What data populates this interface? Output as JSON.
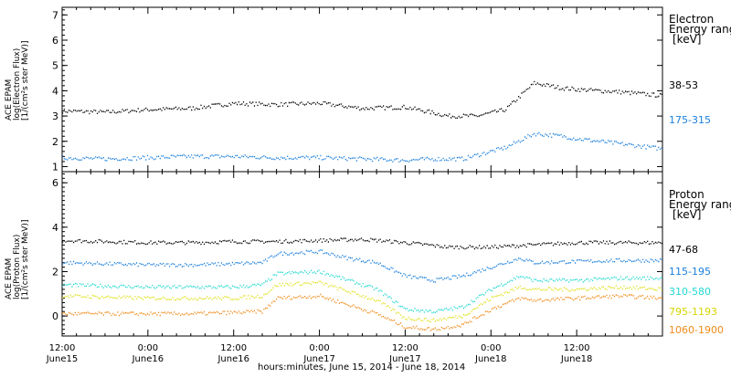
{
  "colors": {
    "black": "#000000",
    "blue": "#1a7fdc",
    "cyan": "#22d8d0",
    "yellow": "#e0e020",
    "orange": "#f08a18",
    "axis": "#000000"
  },
  "chart_data": [
    {
      "type": "scatter",
      "panel": "electron",
      "ylabel_lines": [
        "ACE EPAM",
        "log(Electron Flux)",
        "[1/(cm²s ster MeV)]"
      ],
      "legend_title_lines": [
        "Electron",
        "Energy range",
        "[keV]"
      ],
      "ylim": [
        0.8,
        7.3
      ],
      "yticks": [
        1,
        2,
        3,
        4,
        5,
        6,
        7
      ],
      "series": [
        {
          "name": "38-53",
          "color": "#000000",
          "x": [
            0,
            6,
            12,
            18,
            24,
            30,
            36,
            42,
            48,
            54,
            58,
            62,
            66,
            70,
            72,
            78,
            84
          ],
          "y": [
            3.2,
            3.15,
            3.25,
            3.3,
            3.5,
            3.45,
            3.5,
            3.3,
            3.35,
            3.0,
            3.0,
            3.25,
            4.3,
            4.1,
            4.05,
            3.95,
            3.8
          ]
        },
        {
          "name": "175-315",
          "color": "#1a7fdc",
          "x": [
            0,
            6,
            12,
            18,
            24,
            30,
            36,
            42,
            48,
            52,
            56,
            60,
            62,
            66,
            70,
            72,
            78,
            84
          ],
          "y": [
            1.35,
            1.3,
            1.35,
            1.4,
            1.4,
            1.35,
            1.35,
            1.3,
            1.25,
            1.3,
            1.3,
            1.6,
            1.75,
            2.3,
            2.2,
            2.1,
            1.9,
            1.7
          ]
        }
      ]
    },
    {
      "type": "scatter",
      "panel": "proton",
      "ylabel_lines": [
        "ACE EPAM",
        "log(Proton Flux)",
        "[1/(cm²s ster MeV)]"
      ],
      "legend_title_lines": [
        "Proton",
        "Energy range",
        "[keV]"
      ],
      "ylim": [
        -0.9,
        6.5
      ],
      "yticks": [
        0,
        2,
        4,
        6
      ],
      "series": [
        {
          "name": "47-68",
          "color": "#000000",
          "x": [
            0,
            6,
            12,
            18,
            24,
            30,
            36,
            42,
            48,
            54,
            60,
            66,
            72,
            78,
            84
          ],
          "y": [
            3.4,
            3.35,
            3.3,
            3.3,
            3.35,
            3.35,
            3.4,
            3.45,
            3.3,
            3.1,
            3.1,
            3.2,
            3.3,
            3.3,
            3.3
          ]
        },
        {
          "name": "115-195",
          "color": "#1a7fdc",
          "x": [
            0,
            6,
            12,
            18,
            24,
            28,
            30,
            36,
            40,
            44,
            48,
            52,
            56,
            60,
            64,
            66,
            72,
            78,
            84
          ],
          "y": [
            2.4,
            2.35,
            2.3,
            2.3,
            2.35,
            2.4,
            2.8,
            2.9,
            2.6,
            2.4,
            1.8,
            1.6,
            1.8,
            2.2,
            2.6,
            2.4,
            2.45,
            2.5,
            2.5
          ]
        },
        {
          "name": "310-580",
          "color": "#22d8d0",
          "x": [
            0,
            6,
            12,
            18,
            24,
            28,
            30,
            36,
            40,
            44,
            48,
            52,
            56,
            60,
            64,
            66,
            72,
            78,
            84
          ],
          "y": [
            1.4,
            1.35,
            1.3,
            1.3,
            1.3,
            1.4,
            1.9,
            2.0,
            1.6,
            1.2,
            0.3,
            0.2,
            0.4,
            1.2,
            1.8,
            1.6,
            1.6,
            1.7,
            1.7
          ]
        },
        {
          "name": "795-1193",
          "color": "#e0e020",
          "x": [
            0,
            6,
            12,
            18,
            24,
            28,
            30,
            36,
            40,
            44,
            48,
            52,
            56,
            60,
            64,
            66,
            72,
            78,
            84
          ],
          "y": [
            0.9,
            0.85,
            0.8,
            0.8,
            0.8,
            0.9,
            1.4,
            1.5,
            1.1,
            0.7,
            -0.1,
            -0.2,
            0.0,
            0.8,
            1.3,
            1.2,
            1.2,
            1.3,
            1.2
          ]
        },
        {
          "name": "1060-1900",
          "color": "#f08a18",
          "x": [
            0,
            6,
            12,
            18,
            24,
            28,
            30,
            36,
            40,
            44,
            48,
            52,
            56,
            60,
            64,
            66,
            72,
            78,
            84
          ],
          "y": [
            0.1,
            0.1,
            0.1,
            0.1,
            0.15,
            0.2,
            0.8,
            0.9,
            0.5,
            0.1,
            -0.5,
            -0.6,
            -0.4,
            0.3,
            0.8,
            0.7,
            0.8,
            0.9,
            0.8
          ]
        }
      ]
    }
  ],
  "xaxis": {
    "xlim": [
      0,
      84
    ],
    "major_ticks": [
      0,
      12,
      24,
      36,
      48,
      60,
      72,
      84
    ],
    "tick_labels": [
      {
        "x": 0,
        "time": "12:00",
        "date": "June15"
      },
      {
        "x": 12,
        "time": "0:00",
        "date": "June16"
      },
      {
        "x": 24,
        "time": "12:00",
        "date": "June16"
      },
      {
        "x": 36,
        "time": "0:00",
        "date": "June17"
      },
      {
        "x": 48,
        "time": "12:00",
        "date": "June17"
      },
      {
        "x": 60,
        "time": "0:00",
        "date": "June18"
      },
      {
        "x": 72,
        "time": "12:00",
        "date": "June18"
      }
    ],
    "title": "hours:minutes, June 15, 2014 - June 18, 2014"
  }
}
